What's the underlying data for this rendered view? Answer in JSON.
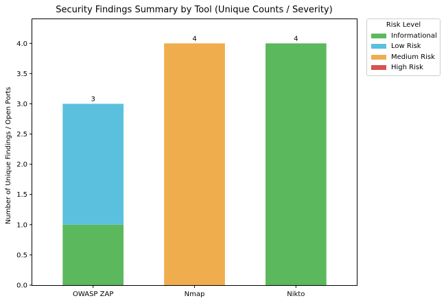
{
  "chart_data": {
    "type": "bar",
    "stacked": true,
    "title": "Security Findings Summary by Tool (Unique Counts / Severity)",
    "xlabel": "",
    "ylabel": "Number of Unique Findings / Open Ports",
    "categories": [
      "OWASP ZAP",
      "Nmap",
      "Nikto"
    ],
    "ylim": [
      0,
      4.4
    ],
    "yticks": [
      "0.0",
      "0.5",
      "1.0",
      "1.5",
      "2.0",
      "2.5",
      "3.0",
      "3.5",
      "4.0"
    ],
    "grid": false,
    "series": [
      {
        "name": "Informational",
        "color": "#5cb85c",
        "values": [
          1,
          0,
          4
        ]
      },
      {
        "name": "Low Risk",
        "color": "#5bc0de",
        "values": [
          2,
          0,
          0
        ]
      },
      {
        "name": "Medium Risk",
        "color": "#f0ad4e",
        "values": [
          0,
          4,
          0
        ]
      },
      {
        "name": "High Risk",
        "color": "#d9534f",
        "values": [
          0,
          0,
          0
        ]
      }
    ],
    "totals": [
      "3",
      "4",
      "4"
    ],
    "legend": {
      "title": "Risk Level",
      "placement": "outside-top-right"
    }
  }
}
